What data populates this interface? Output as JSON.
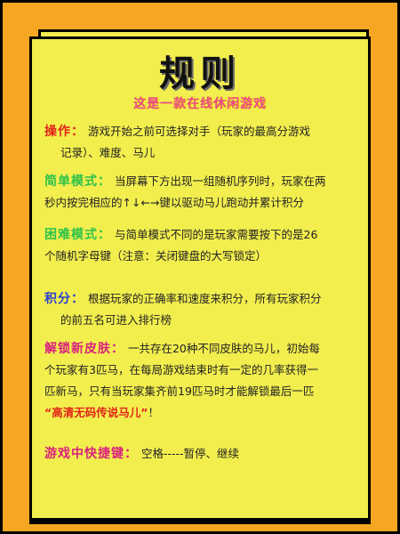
{
  "title": "规则",
  "subtitle": "这是一款在线休闲游戏",
  "sections": {
    "operation": {
      "label": "操作：",
      "text_line1": "游戏开始之前可选择对手（玩家的最高分游戏",
      "text_line2": "记录）、难度、马儿"
    },
    "easy_mode": {
      "label": "简单模式：",
      "text_line1": "当屏幕下方出现一组随机序列时，玩家在两",
      "text_line2": "秒内按完相应的↑↓←→键以驱动马儿跑动并累计积分"
    },
    "hard_mode": {
      "label": "困难模式：",
      "text_line1": "与简单模式不同的是玩家需要按下的是26",
      "text_line2": "个随机字母键（注意：关闭键盘的大写锁定）"
    },
    "score": {
      "label": "积分：",
      "text_line1": "根据玩家的正确率和速度来积分，所有玩家积分",
      "text_line2": "的前五名可进入排行榜"
    },
    "unlock_skin": {
      "label": "解锁新皮肤：",
      "text_line1": "一共存在20种不同皮肤的马儿，初始每",
      "text_line2": "个玩家有3匹马，在每局游戏结束时有一定的几率获得一",
      "text_line3": "匹新马，只有当玩家集齐前19匹马时才能解锁最后一匹",
      "highlight": "“高清无码传说马儿”",
      "end": "！"
    },
    "hotkeys": {
      "label": "游戏中快捷键：",
      "text": "空格-----暂停、继续"
    }
  },
  "colors": {
    "background": "#f5a623",
    "paper": "#f2ee4e",
    "title": "#111111",
    "subtitle": "#e84a8a",
    "red": "#e2231a",
    "green": "#2ec24a",
    "blue": "#2a3fd1",
    "magenta": "#d9217f"
  }
}
